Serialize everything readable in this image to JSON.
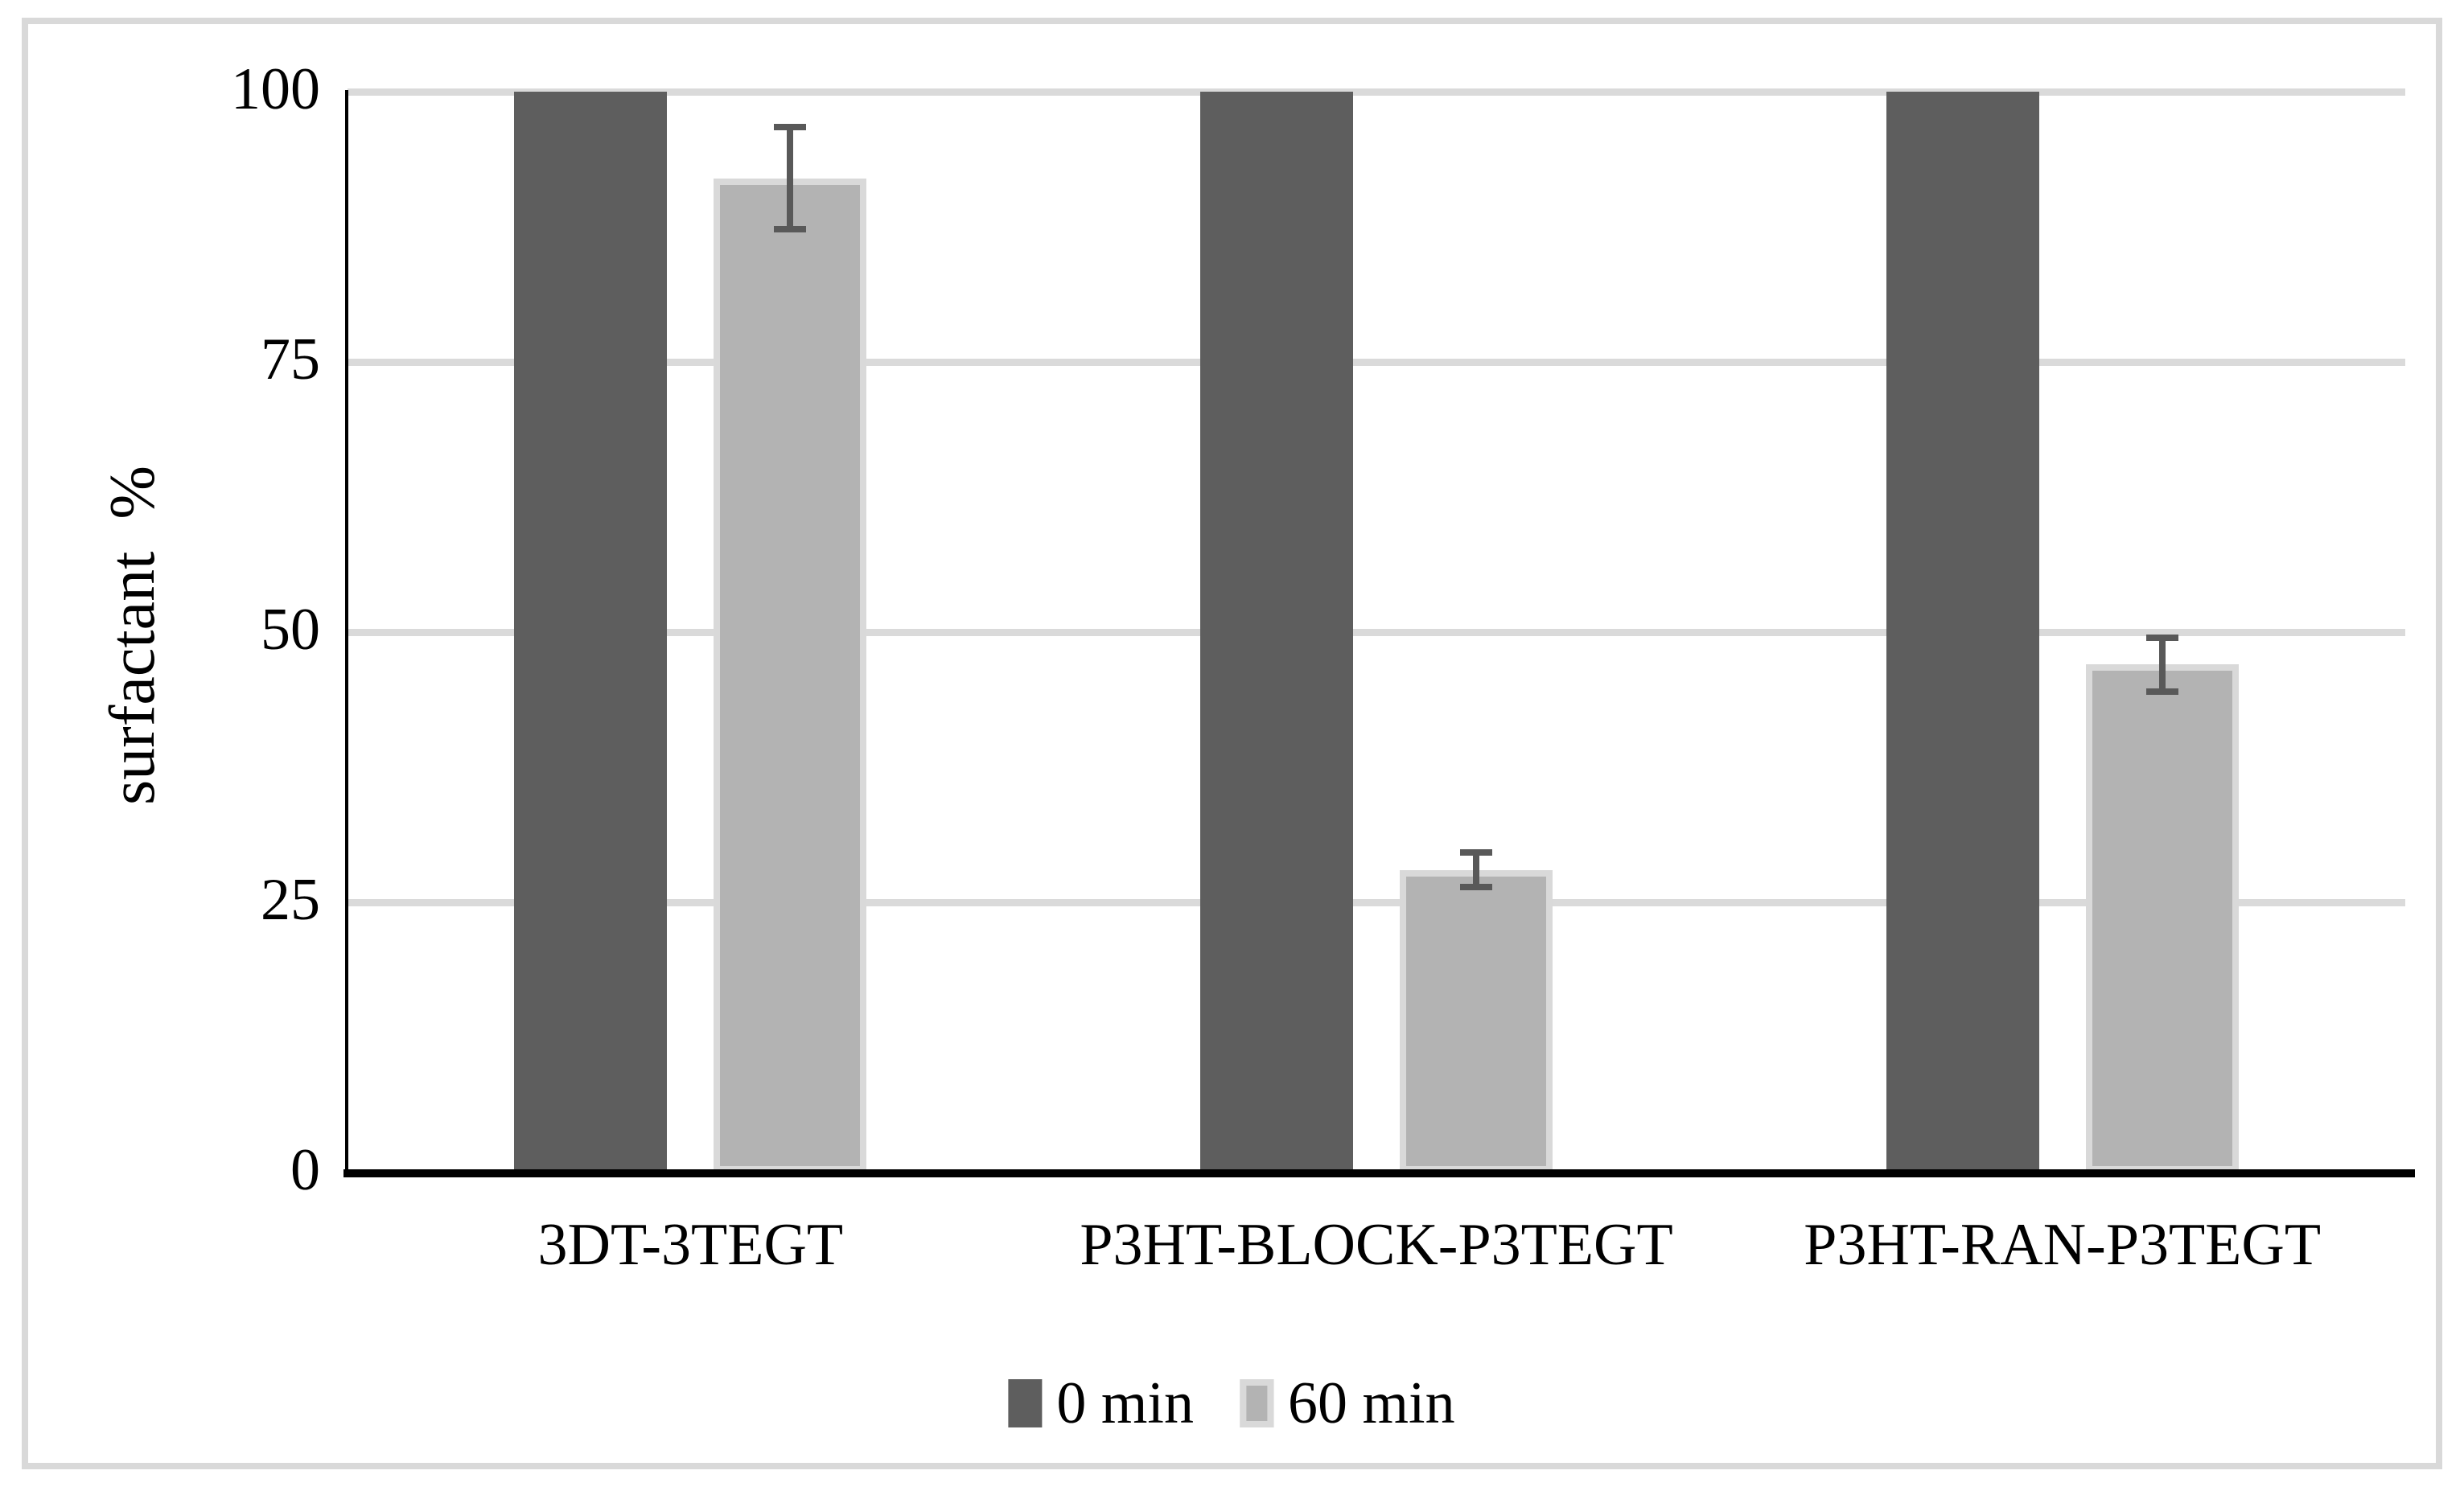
{
  "figure": {
    "background": "#ffffff",
    "frame_border_color": "#d9d9d9"
  },
  "chart_data": {
    "type": "bar",
    "title": "",
    "xlabel": "",
    "ylabel": "surfactant  %",
    "categories": [
      "3DT-3TEGT",
      "P3HT-BLOCK-P3TEGT",
      "P3HT-RAN-P3TEGT"
    ],
    "series": [
      {
        "name": "0 min",
        "color": "#5e5e5e",
        "border_color": "#5e5e5e",
        "values": [
          100,
          100,
          100
        ],
        "errors": [
          0,
          0,
          0
        ]
      },
      {
        "name": "60 min",
        "color": "#b3b3b3",
        "border_color": "#d9d9d9",
        "values": [
          92,
          28,
          47
        ],
        "errors": [
          4.7,
          1.6,
          2.5
        ]
      }
    ],
    "ylim": [
      0,
      100
    ],
    "yticks": [
      0,
      25,
      50,
      75,
      100
    ],
    "grid": "horizontal",
    "gridline_color": "#dadada",
    "axis_color": "#000000",
    "error_bar_color": "#595959",
    "legend_position": "bottom"
  }
}
